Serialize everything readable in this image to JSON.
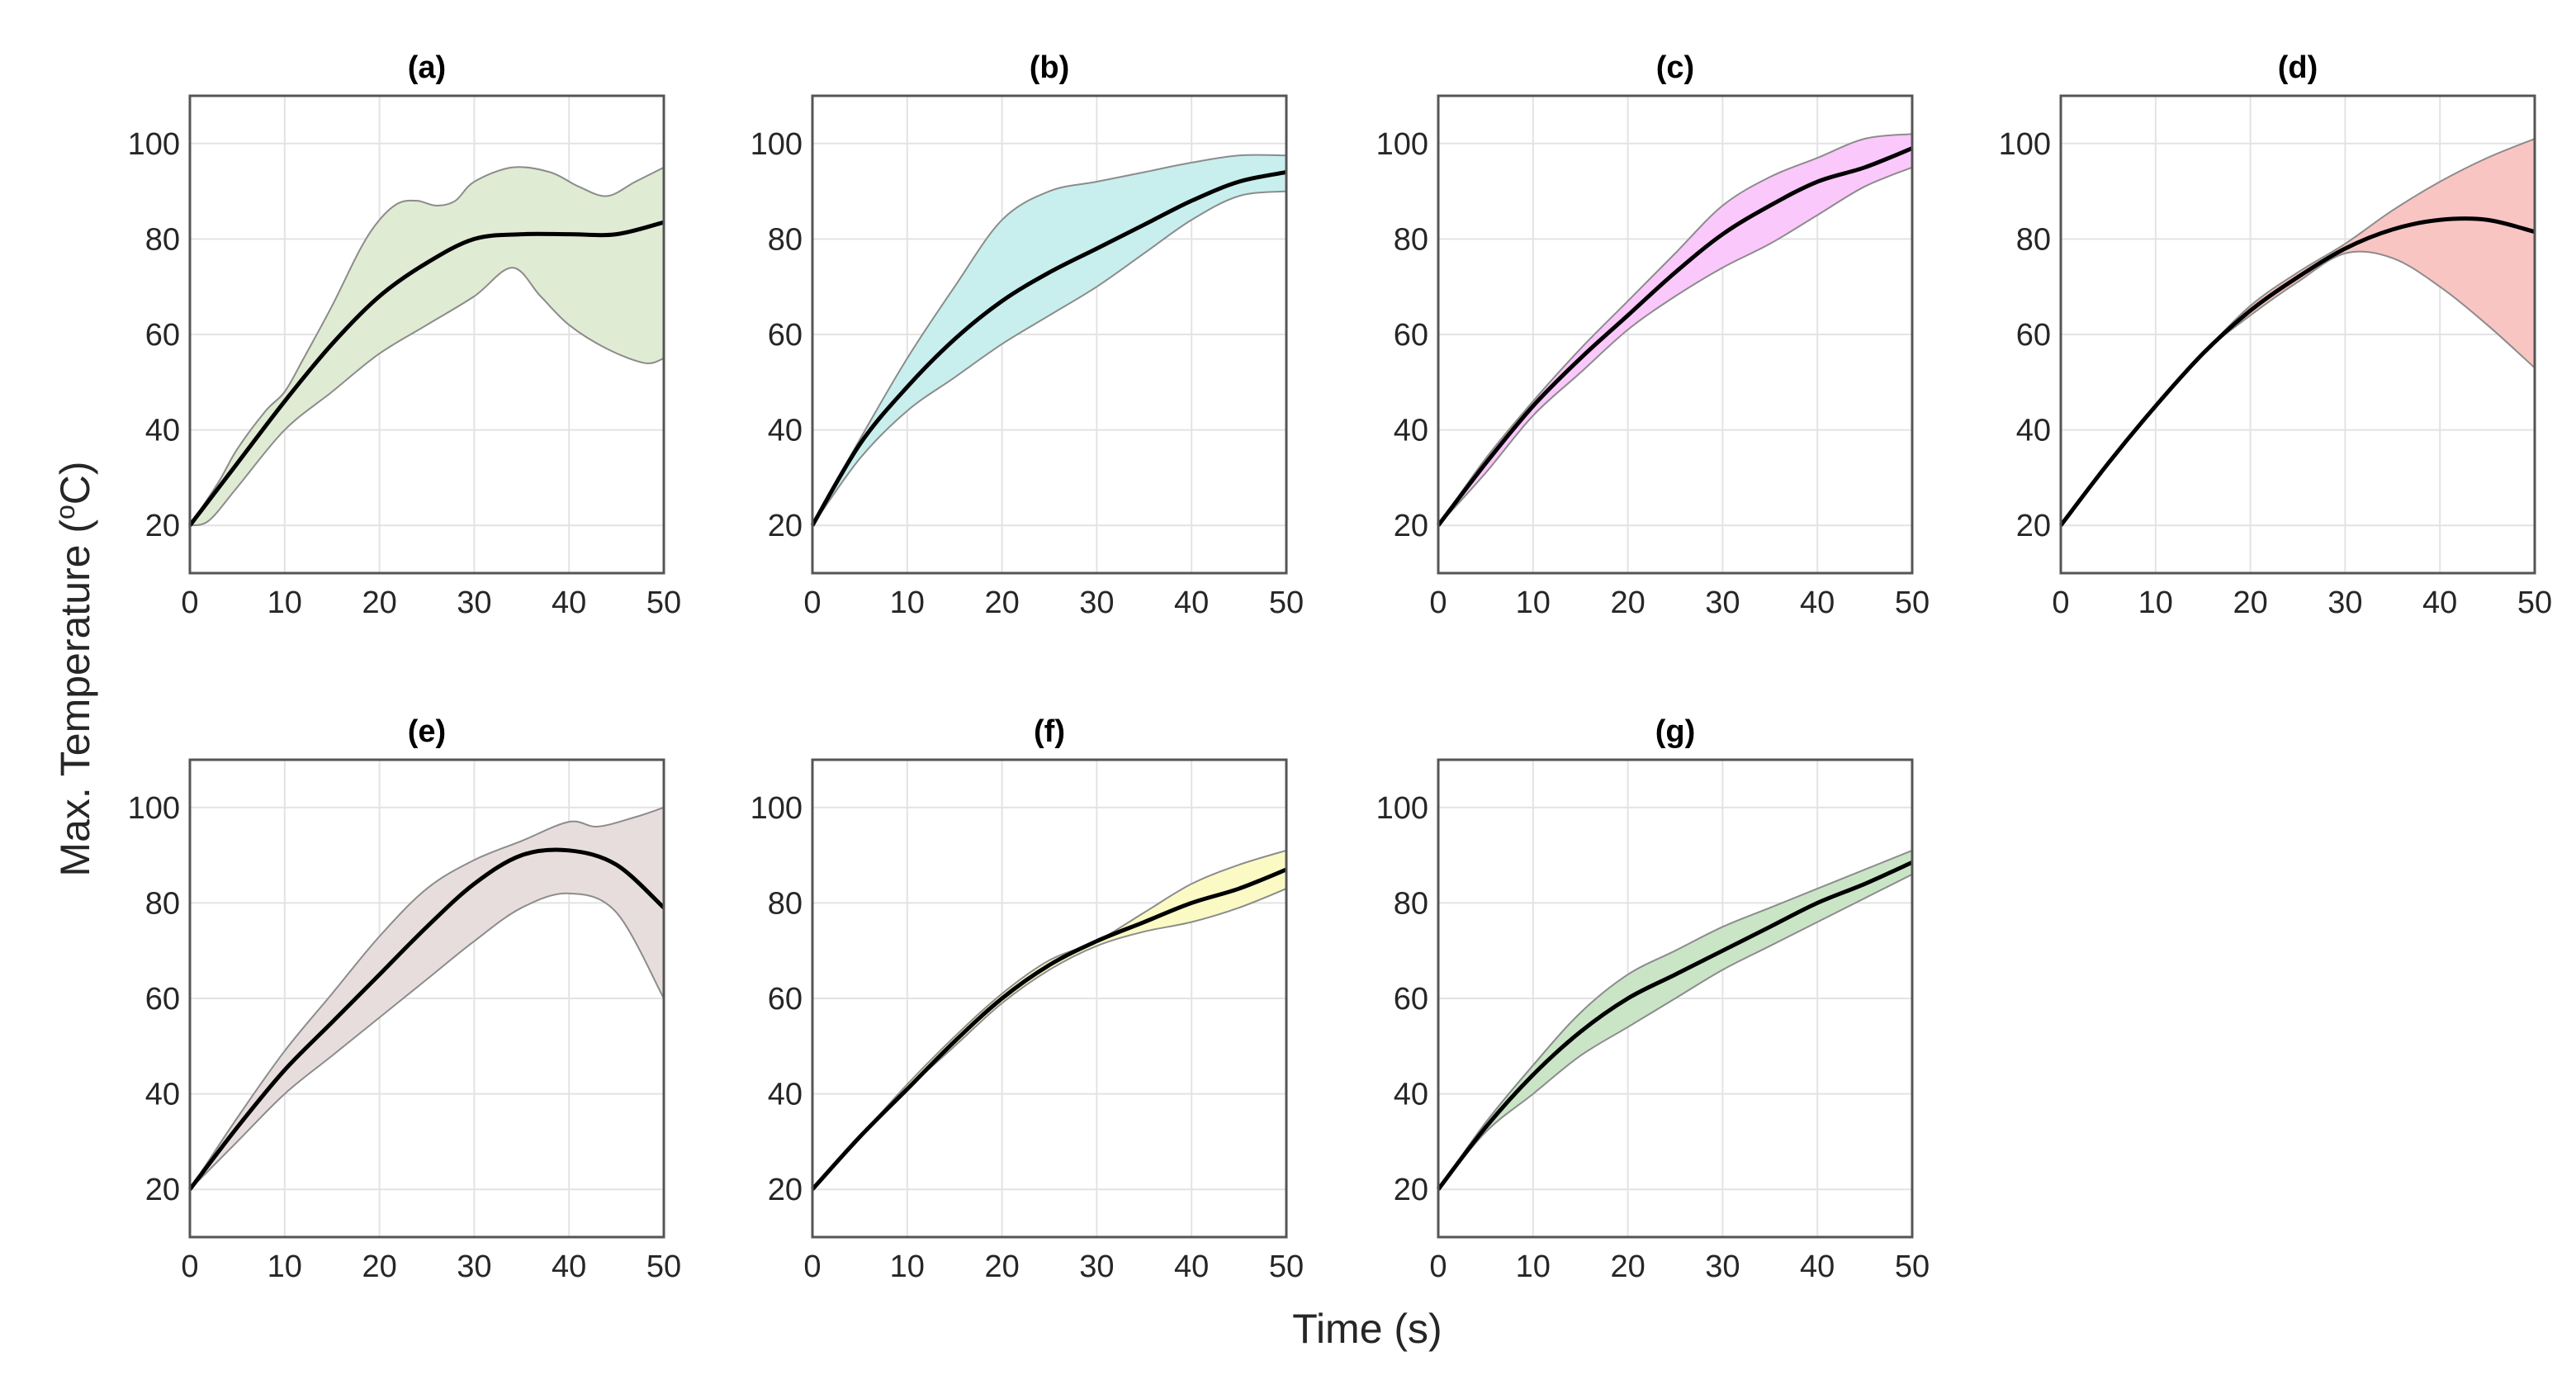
{
  "chart_data": {
    "type": "line",
    "xlabel": "Time (s)",
    "ylabel_prefix": "Max. Temperature (",
    "ylabel_sup": "o",
    "ylabel_suffix": "C)",
    "xlim": [
      0,
      50
    ],
    "ylim": [
      10,
      110
    ],
    "xticks": [
      0,
      10,
      20,
      30,
      40,
      50
    ],
    "yticks": [
      20,
      40,
      60,
      80,
      100
    ],
    "grid": true,
    "band_edge_color": "#8c8c8c",
    "mean_color": "#000000",
    "panels": [
      {
        "title": "(a)",
        "band_color": "#e0ebd3",
        "mean": {
          "x": [
            0,
            5,
            10,
            15,
            20,
            25,
            30,
            35,
            40,
            45,
            50
          ],
          "y": [
            20,
            33,
            46,
            58,
            68,
            75,
            80,
            81,
            81,
            81,
            83.5
          ]
        },
        "upper": {
          "x": [
            0,
            3,
            5,
            8,
            10,
            12,
            15,
            18,
            20,
            22,
            24,
            26,
            28,
            30,
            34,
            38,
            41,
            44,
            47,
            50
          ],
          "y": [
            20,
            29,
            36,
            44,
            48,
            55,
            66,
            78,
            84,
            87.5,
            88,
            87,
            88,
            92,
            95,
            94,
            91,
            89,
            92,
            95
          ]
        },
        "lower": {
          "x": [
            0,
            2,
            5,
            10,
            15,
            20,
            25,
            30,
            34,
            37,
            40,
            44,
            48,
            50
          ],
          "y": [
            20,
            21,
            28,
            40,
            48,
            56,
            62,
            68,
            74,
            68,
            62,
            57,
            54,
            55
          ]
        }
      },
      {
        "title": "(b)",
        "band_color": "#c8efee",
        "mean": {
          "x": [
            0,
            5,
            10,
            15,
            20,
            25,
            30,
            35,
            40,
            45,
            50
          ],
          "y": [
            20,
            37,
            49,
            59,
            67,
            73,
            78,
            83,
            88,
            92,
            94
          ]
        },
        "upper": {
          "x": [
            0,
            5,
            10,
            15,
            20,
            25,
            30,
            35,
            40,
            45,
            50
          ],
          "y": [
            20,
            38,
            55,
            70,
            84,
            90,
            92,
            94,
            96,
            97.5,
            97.5
          ]
        },
        "lower": {
          "x": [
            0,
            5,
            10,
            15,
            20,
            25,
            30,
            35,
            40,
            45,
            50
          ],
          "y": [
            20,
            34,
            44,
            51,
            58,
            64,
            70,
            77,
            84,
            89,
            90
          ]
        }
      },
      {
        "title": "(c)",
        "band_color": "#fbc8fb",
        "mean": {
          "x": [
            0,
            5,
            10,
            15,
            20,
            25,
            30,
            35,
            40,
            45,
            50
          ],
          "y": [
            20,
            33,
            45,
            55,
            64,
            73,
            81,
            87,
            92,
            95,
            99
          ]
        },
        "upper": {
          "x": [
            0,
            5,
            10,
            15,
            20,
            25,
            30,
            35,
            40,
            45,
            50
          ],
          "y": [
            20,
            34,
            46,
            57,
            67,
            77,
            87,
            93,
            97,
            101,
            102
          ]
        },
        "lower": {
          "x": [
            0,
            5,
            10,
            15,
            20,
            25,
            30,
            35,
            40,
            45,
            50
          ],
          "y": [
            20,
            31,
            43,
            52,
            61,
            68,
            74,
            79,
            85,
            91,
            95
          ]
        }
      },
      {
        "title": "(d)",
        "band_color": "#f9c5c3",
        "mean": {
          "x": [
            0,
            5,
            10,
            15,
            20,
            25,
            30,
            35,
            40,
            45,
            50
          ],
          "y": [
            20,
            33,
            45,
            56,
            65,
            72,
            78,
            82,
            84,
            84,
            81.5
          ]
        },
        "upper": {
          "x": [
            0,
            5,
            10,
            15,
            20,
            25,
            30,
            35,
            40,
            45,
            50
          ],
          "y": [
            20,
            33,
            45,
            56,
            66,
            73,
            79,
            86,
            92,
            97,
            101
          ]
        },
        "lower": {
          "x": [
            0,
            5,
            10,
            15,
            20,
            25,
            30,
            35,
            40,
            45,
            50
          ],
          "y": [
            20,
            33,
            45,
            56,
            64,
            71,
            77,
            76,
            70,
            62,
            53
          ]
        }
      },
      {
        "title": "(e)",
        "band_color": "#e8dddd",
        "mean": {
          "x": [
            0,
            5,
            10,
            15,
            20,
            25,
            30,
            35,
            40,
            45,
            50
          ],
          "y": [
            20,
            33,
            45,
            55,
            65,
            75,
            84,
            90,
            91,
            88,
            79
          ]
        },
        "upper": {
          "x": [
            0,
            5,
            10,
            15,
            20,
            25,
            30,
            35,
            40,
            43,
            47,
            50
          ],
          "y": [
            20,
            35,
            49,
            61,
            73,
            83,
            89,
            93,
            97,
            96,
            98,
            100
          ]
        },
        "lower": {
          "x": [
            0,
            5,
            10,
            15,
            20,
            25,
            30,
            35,
            40,
            45,
            50
          ],
          "y": [
            20,
            30,
            40,
            48,
            56,
            64,
            72,
            79,
            82,
            78,
            60
          ]
        }
      },
      {
        "title": "(f)",
        "band_color": "#fbfac5",
        "mean": {
          "x": [
            0,
            5,
            10,
            15,
            20,
            25,
            30,
            35,
            40,
            45,
            50
          ],
          "y": [
            20,
            31,
            41,
            51,
            60,
            67,
            72,
            76,
            80,
            83,
            87
          ]
        },
        "upper": {
          "x": [
            0,
            5,
            10,
            15,
            20,
            25,
            30,
            35,
            40,
            45,
            50
          ],
          "y": [
            20,
            31,
            42,
            52,
            61,
            68,
            72,
            78,
            84,
            88,
            91
          ]
        },
        "lower": {
          "x": [
            0,
            5,
            10,
            15,
            20,
            25,
            30,
            35,
            40,
            45,
            50
          ],
          "y": [
            20,
            31,
            41,
            50,
            59,
            66,
            71,
            74,
            76,
            79,
            83
          ]
        }
      },
      {
        "title": "(g)",
        "band_color": "#c9e5c6",
        "mean": {
          "x": [
            0,
            5,
            10,
            15,
            20,
            25,
            30,
            35,
            40,
            45,
            50
          ],
          "y": [
            20,
            33,
            44,
            53,
            60,
            65,
            70,
            75,
            80,
            84,
            88.5
          ]
        },
        "upper": {
          "x": [
            0,
            5,
            10,
            15,
            20,
            25,
            30,
            35,
            40,
            45,
            50
          ],
          "y": [
            20,
            34,
            46,
            57,
            65,
            70,
            75,
            79,
            83,
            87,
            91
          ]
        },
        "lower": {
          "x": [
            0,
            5,
            10,
            15,
            20,
            25,
            30,
            35,
            40,
            45,
            50
          ],
          "y": [
            20,
            32,
            40,
            48,
            54,
            60,
            66,
            71,
            76,
            81,
            86
          ]
        }
      }
    ]
  }
}
